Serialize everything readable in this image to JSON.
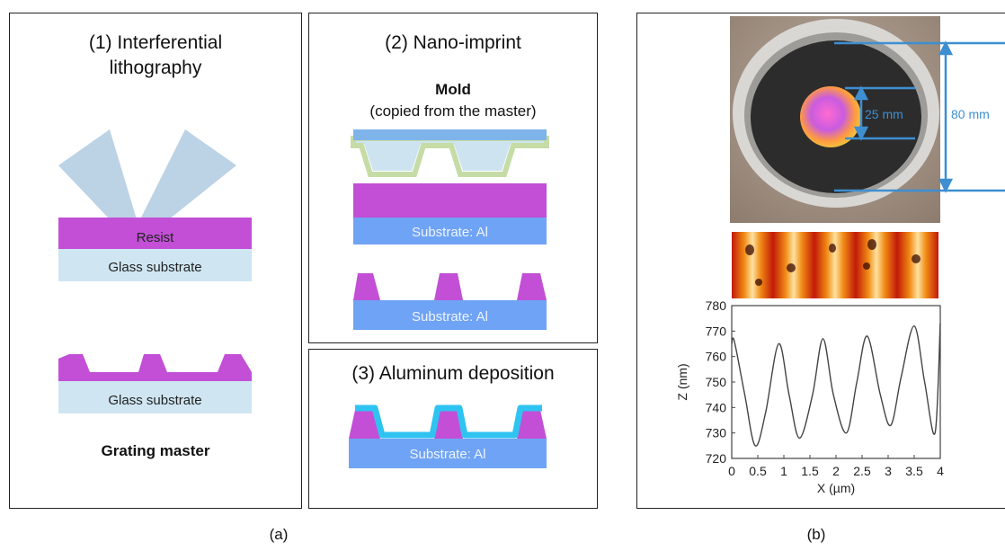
{
  "panel1": {
    "title_line1": "(1) Interferential",
    "title_line2": "lithography",
    "resist_label": "Resist",
    "glass_label_top": "Glass substrate",
    "glass_label_bottom": "Glass substrate",
    "caption": "Grating master"
  },
  "panel2": {
    "title": "(2) Nano-imprint",
    "mold_title": "Mold",
    "mold_subtitle": "(copied from the master)",
    "substrate_label_1": "Substrate: Al",
    "substrate_label_2": "Substrate: Al"
  },
  "panel3": {
    "title": "(3) Aluminum deposition",
    "substrate_label": "Substrate: Al"
  },
  "panelb": {
    "dim_inner": "25 mm",
    "dim_outer": "80 mm"
  },
  "chart_data": {
    "type": "line",
    "xlabel": "X (µm)",
    "ylabel": "Z (nm)",
    "xlim": [
      0,
      4
    ],
    "ylim": [
      720,
      780
    ],
    "xticks": [
      "0",
      "0.5",
      "1",
      "1.5",
      "2",
      "2.5",
      "3",
      "3.5",
      "4"
    ],
    "yticks": [
      "720",
      "730",
      "740",
      "750",
      "760",
      "770",
      "780"
    ],
    "grid": false,
    "series": [
      {
        "x": [
          0,
          0.05,
          0.25,
          0.45,
          0.65,
          0.9,
          1.1,
          1.3,
          1.55,
          1.75,
          1.95,
          2.2,
          2.4,
          2.6,
          2.85,
          3.05,
          3.25,
          3.5,
          3.7,
          3.9,
          4.0
        ],
        "values": [
          765,
          766,
          745,
          725,
          738,
          765,
          745,
          728,
          745,
          767,
          745,
          730,
          750,
          768,
          745,
          733,
          752,
          772,
          750,
          730,
          773
        ]
      }
    ]
  },
  "captions": {
    "a": "(a)",
    "b": "(b)"
  },
  "colors": {
    "resist": "#c24fd6",
    "glass": "#cfe6f2",
    "substrate": "#6fa3f5",
    "beam": "#b5cde2",
    "mold_top": "#7fb4ea",
    "mold_green": "#c6dca6",
    "mold_fill": "#cde4f0",
    "aluminum": "#2fc3f2",
    "dimension": "#3d8fd1"
  }
}
